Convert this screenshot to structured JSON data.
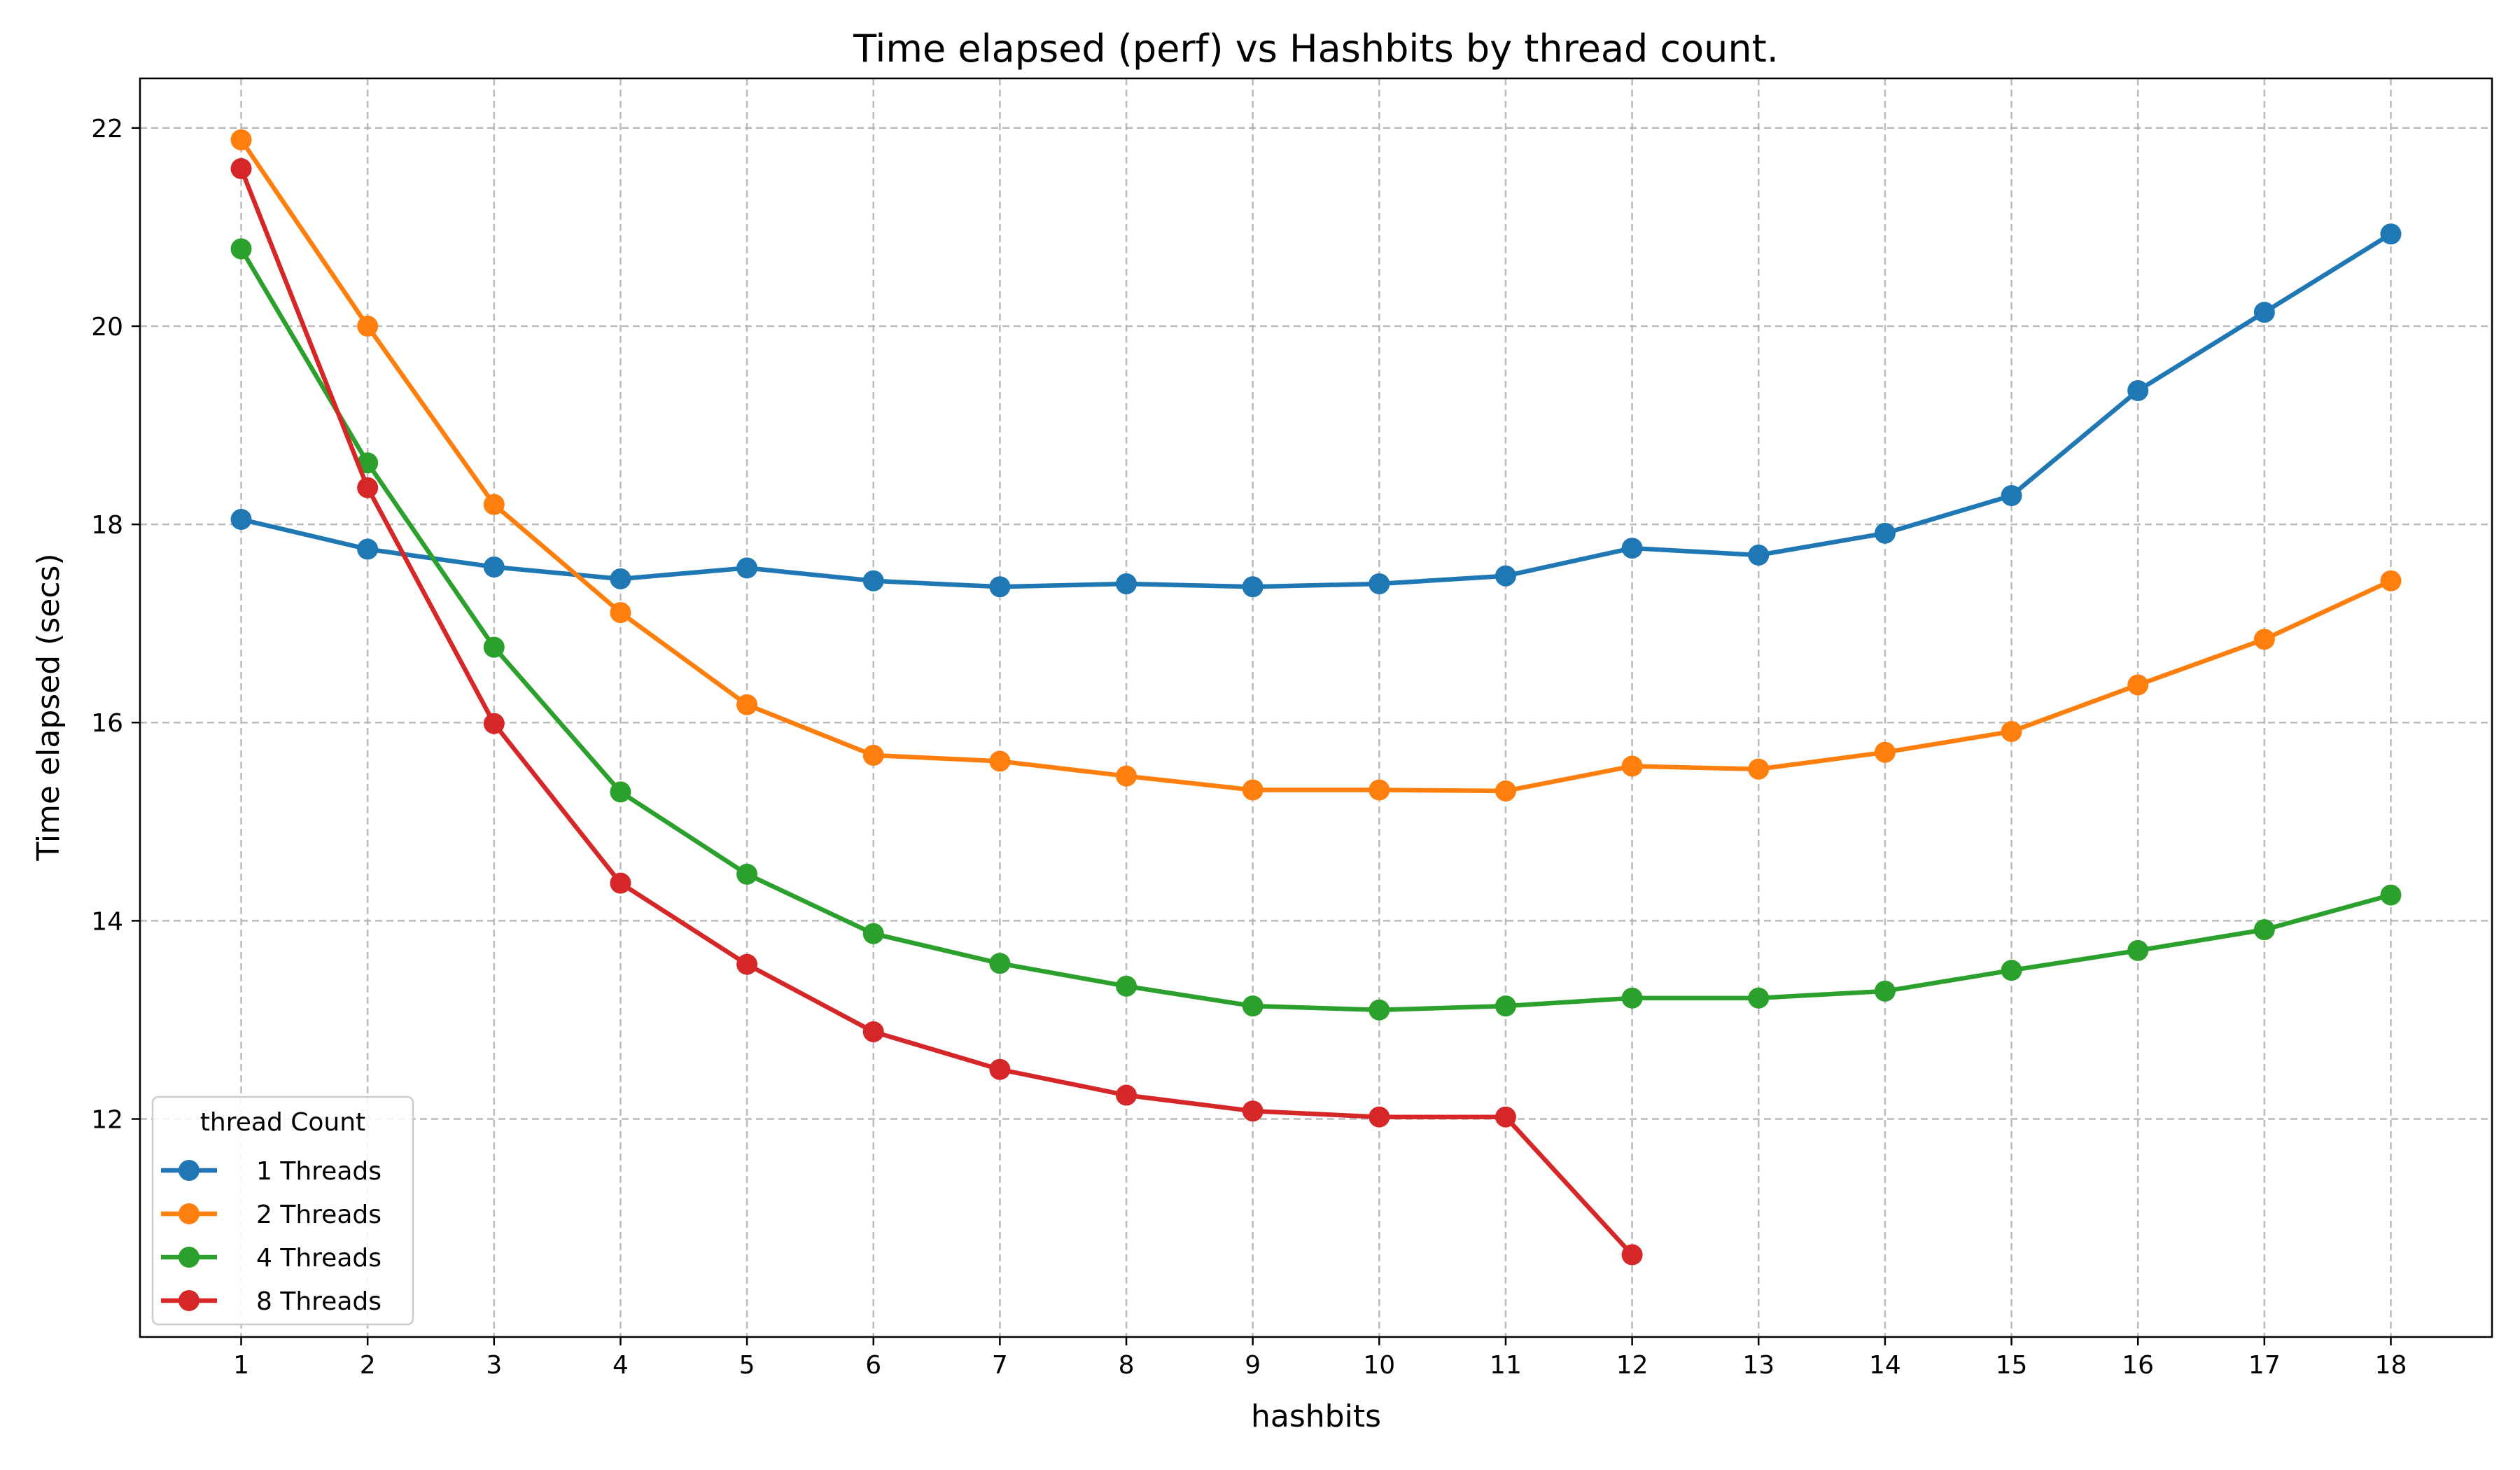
{
  "chart_data": {
    "type": "line",
    "title": "Time elapsed (perf) vs Hashbits by thread count.",
    "xlabel": "hashbits",
    "ylabel": "Time elapsed (secs)",
    "x": [
      1,
      2,
      3,
      4,
      5,
      6,
      7,
      8,
      9,
      10,
      11,
      12,
      13,
      14,
      15,
      16,
      17,
      18
    ],
    "xlim": [
      0.2,
      18.8
    ],
    "ylim": [
      9.8,
      22.5
    ],
    "yticks": [
      12,
      14,
      16,
      18,
      20,
      22
    ],
    "grid": true,
    "legend": {
      "title": "thread Count",
      "position": "lower-left"
    },
    "series": [
      {
        "name": "1 Threads",
        "color": "#1f77b4",
        "values": [
          18.05,
          17.75,
          17.57,
          17.45,
          17.56,
          17.43,
          17.37,
          17.4,
          17.37,
          17.4,
          17.48,
          17.76,
          17.69,
          17.91,
          18.29,
          19.35,
          20.14,
          20.93
        ]
      },
      {
        "name": "2 Threads",
        "color": "#ff7f0e",
        "values": [
          21.88,
          20.0,
          18.2,
          17.11,
          16.18,
          15.67,
          15.61,
          15.46,
          15.32,
          15.32,
          15.31,
          15.56,
          15.53,
          15.7,
          15.91,
          16.38,
          16.84,
          17.43
        ]
      },
      {
        "name": "4 Threads",
        "color": "#2ca02c",
        "values": [
          20.78,
          18.62,
          16.76,
          15.3,
          14.47,
          13.87,
          13.57,
          13.34,
          13.14,
          13.1,
          13.14,
          13.22,
          13.22,
          13.29,
          13.5,
          13.7,
          13.91,
          14.26
        ]
      },
      {
        "name": "8 Threads",
        "color": "#d62728",
        "values": [
          21.59,
          18.37,
          15.99,
          14.38,
          13.56,
          12.88,
          12.5,
          12.24,
          12.08,
          12.02,
          12.02,
          10.63,
          null,
          null,
          null,
          null,
          null,
          null
        ]
      }
    ]
  }
}
